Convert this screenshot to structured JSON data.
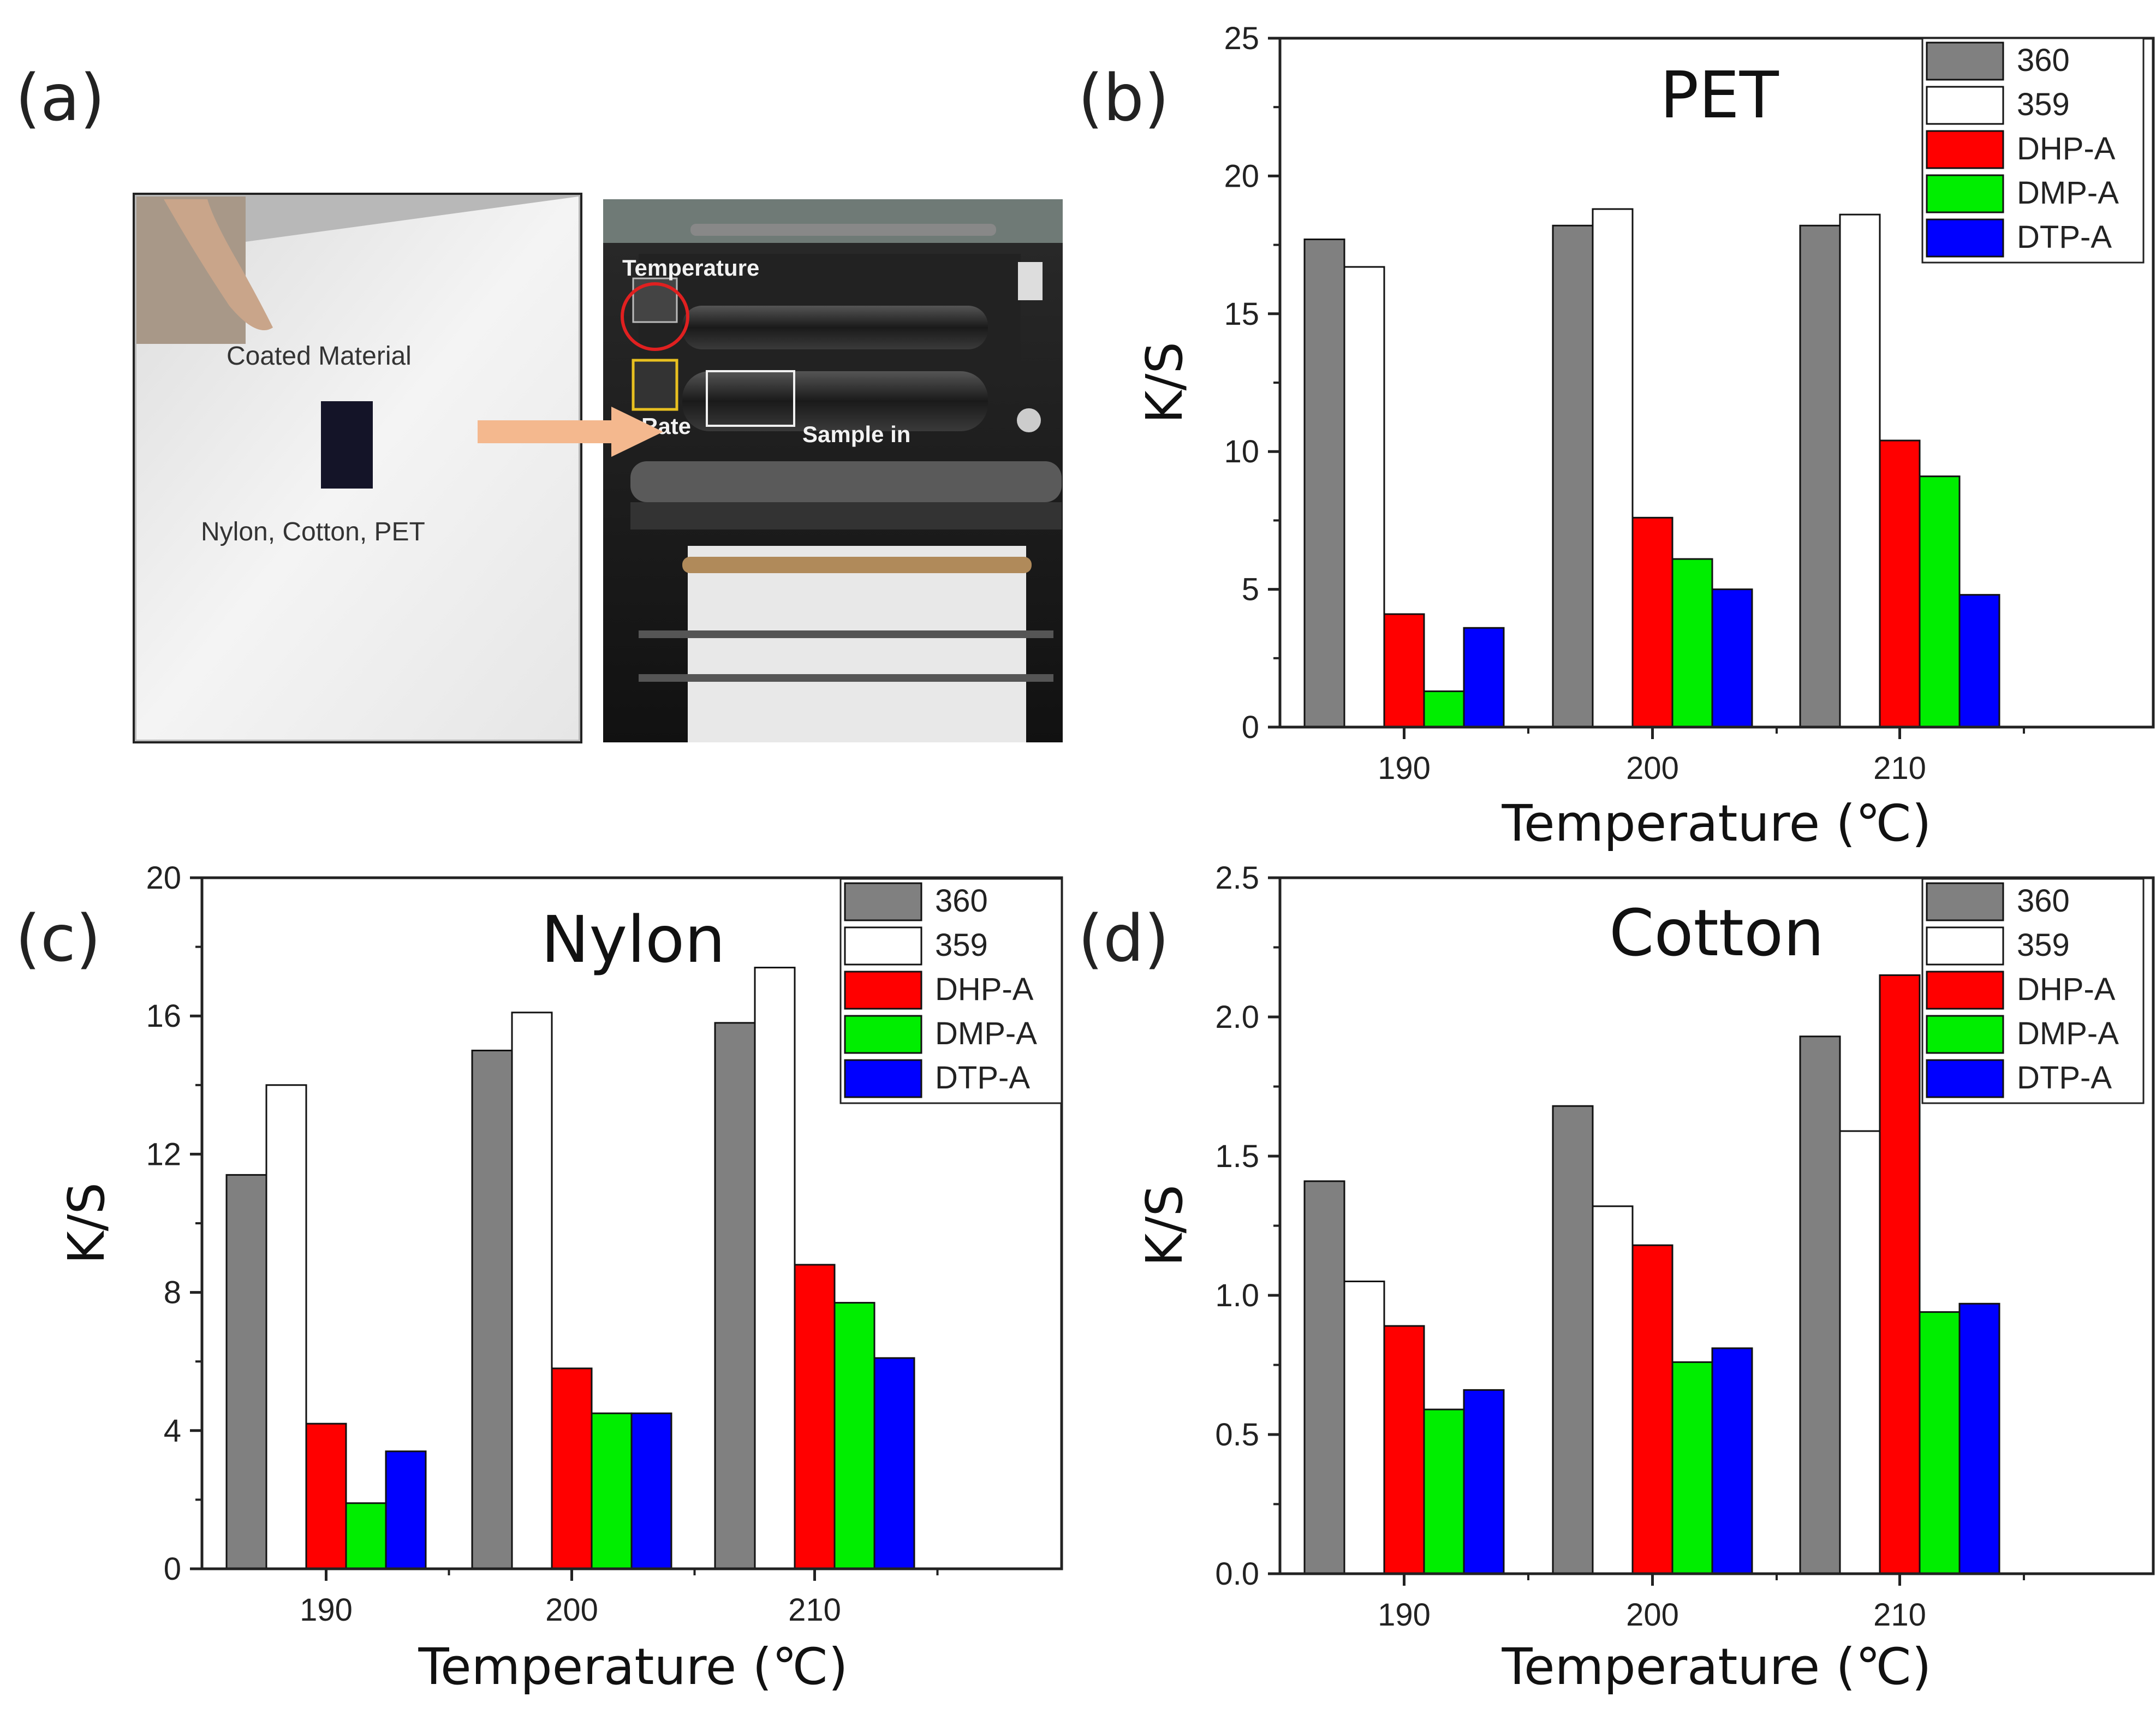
{
  "panel_a": {
    "label": "(a)",
    "photo_left": {
      "caption_top": "Coated Material",
      "caption_bottom": "Nylon, Cotton, PET"
    },
    "photo_right": {
      "label_temperature": "Temperature",
      "label_rate": "Rate",
      "label_sample": "Sample in"
    },
    "arrow_color": "#f4b88e"
  },
  "colors": {
    "360": "#808080",
    "359": "#ffffff",
    "DHP-A": "#ff0000",
    "DMP-A": "#00ee00",
    "DTP-A": "#0000ff"
  },
  "chart_data": [
    {
      "id": "b",
      "panel_label": "(b)",
      "type": "bar",
      "title": "PET",
      "xlabel": "Temperature (℃)",
      "ylabel": "K/S",
      "categories": [
        "190",
        "200",
        "210"
      ],
      "ylim": [
        0,
        25
      ],
      "yticks": [
        "0",
        "5",
        "10",
        "15",
        "20",
        "25"
      ],
      "legend_position": "top-right",
      "series": [
        {
          "name": "360",
          "values": [
            17.7,
            18.2,
            18.2
          ]
        },
        {
          "name": "359",
          "values": [
            16.7,
            18.8,
            18.6
          ]
        },
        {
          "name": "DHP-A",
          "values": [
            4.1,
            7.6,
            10.4
          ]
        },
        {
          "name": "DMP-A",
          "values": [
            1.3,
            6.1,
            9.1
          ]
        },
        {
          "name": "DTP-A",
          "values": [
            3.6,
            5.0,
            4.8
          ]
        }
      ]
    },
    {
      "id": "c",
      "panel_label": "(c)",
      "type": "bar",
      "title": "Nylon",
      "xlabel": "Temperature (℃)",
      "ylabel": "K/S",
      "categories": [
        "190",
        "200",
        "210"
      ],
      "ylim": [
        0,
        20
      ],
      "yticks": [
        "0",
        "4",
        "8",
        "12",
        "16",
        "20"
      ],
      "legend_position": "top-right",
      "series": [
        {
          "name": "360",
          "values": [
            11.4,
            15.0,
            15.8
          ]
        },
        {
          "name": "359",
          "values": [
            14.0,
            16.1,
            17.4
          ]
        },
        {
          "name": "DHP-A",
          "values": [
            4.2,
            5.8,
            8.8
          ]
        },
        {
          "name": "DMP-A",
          "values": [
            1.9,
            4.5,
            7.7
          ]
        },
        {
          "name": "DTP-A",
          "values": [
            3.4,
            4.5,
            6.1
          ]
        }
      ]
    },
    {
      "id": "d",
      "panel_label": "(d)",
      "type": "bar",
      "title": "Cotton",
      "xlabel": "Temperature (℃)",
      "ylabel": "K/S",
      "categories": [
        "190",
        "200",
        "210"
      ],
      "ylim": [
        0,
        2.5
      ],
      "yticks": [
        "0.0",
        "0.5",
        "1.0",
        "1.5",
        "2.0",
        "2.5"
      ],
      "legend_position": "top-right",
      "series": [
        {
          "name": "360",
          "values": [
            1.41,
            1.68,
            1.93
          ]
        },
        {
          "name": "359",
          "values": [
            1.05,
            1.32,
            1.59
          ]
        },
        {
          "name": "DHP-A",
          "values": [
            0.89,
            1.18,
            2.15
          ]
        },
        {
          "name": "DMP-A",
          "values": [
            0.59,
            0.76,
            0.94
          ]
        },
        {
          "name": "DTP-A",
          "values": [
            0.66,
            0.81,
            0.97
          ]
        }
      ]
    }
  ]
}
